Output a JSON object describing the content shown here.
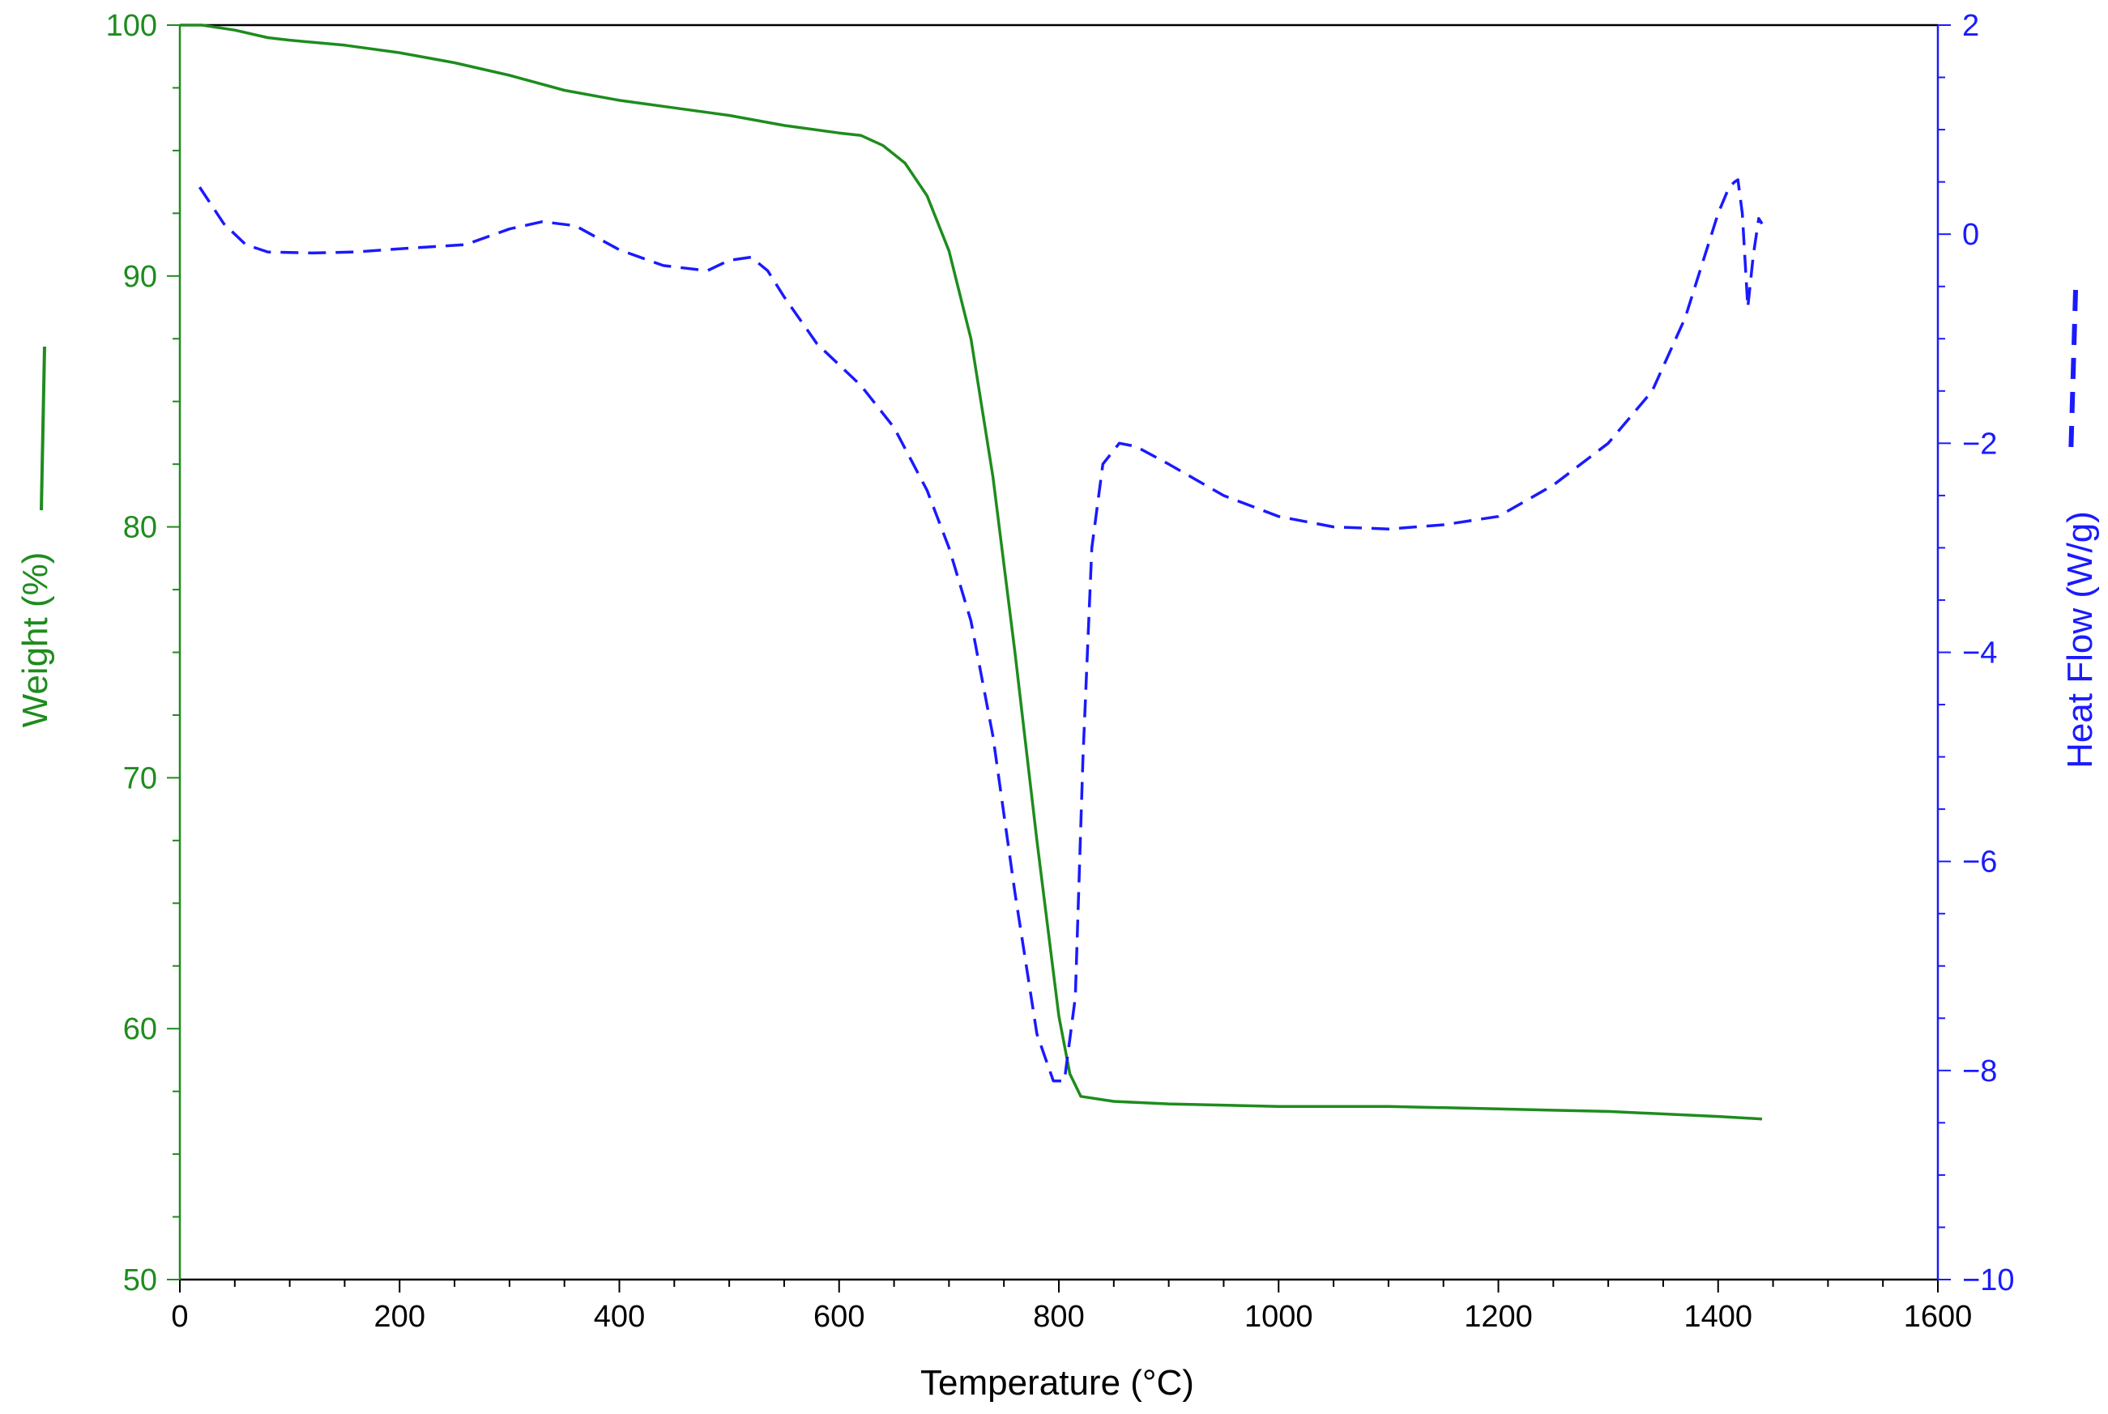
{
  "chart_data": {
    "type": "line",
    "title": "",
    "xlabel": "Temperature (°C)",
    "ylabel": "Weight (%)",
    "y2label": "Heat Flow (W/g)",
    "xlim": [
      0,
      1600
    ],
    "ylim": [
      50,
      100
    ],
    "y2lim": [
      -10,
      2
    ],
    "x_ticks": [
      0,
      200,
      400,
      600,
      800,
      1000,
      1200,
      1400,
      1600
    ],
    "y_ticks": [
      50,
      60,
      70,
      80,
      90,
      100
    ],
    "y2_ticks": [
      -10,
      -8,
      -6,
      -4,
      -2,
      0,
      2
    ],
    "grid": false,
    "legend": "axis-title line swatches",
    "colors": {
      "weight": "#1e8c1e",
      "heat_flow": "#1a1aff",
      "axis": "#000000"
    },
    "series": [
      {
        "key": "weight",
        "axis": "left",
        "style": "solid",
        "x": [
          0,
          20,
          50,
          80,
          100,
          150,
          200,
          250,
          300,
          350,
          400,
          450,
          500,
          550,
          600,
          620,
          640,
          660,
          680,
          700,
          720,
          740,
          760,
          780,
          800,
          810,
          820,
          850,
          900,
          1000,
          1100,
          1200,
          1300,
          1400,
          1440
        ],
        "y": [
          100,
          100,
          99.8,
          99.5,
          99.4,
          99.2,
          98.9,
          98.5,
          98.0,
          97.4,
          97.0,
          96.7,
          96.4,
          96.0,
          95.7,
          95.6,
          95.2,
          94.5,
          93.2,
          91.0,
          87.5,
          82.0,
          75.0,
          67.5,
          60.5,
          58.2,
          57.3,
          57.1,
          57.0,
          56.9,
          56.9,
          56.8,
          56.7,
          56.5,
          56.4
        ]
      },
      {
        "key": "heat_flow",
        "axis": "right",
        "style": "dashed",
        "x": [
          18,
          40,
          60,
          80,
          120,
          160,
          200,
          260,
          300,
          330,
          360,
          400,
          440,
          480,
          500,
          520,
          535,
          550,
          580,
          600,
          620,
          650,
          680,
          700,
          720,
          740,
          760,
          780,
          795,
          805,
          815,
          822,
          830,
          840,
          855,
          870,
          900,
          950,
          1000,
          1050,
          1100,
          1150,
          1200,
          1250,
          1300,
          1340,
          1370,
          1400,
          1410,
          1415,
          1418,
          1422,
          1427,
          1432,
          1437,
          1440
        ],
        "y": [
          0.45,
          0.1,
          -0.1,
          -0.17,
          -0.18,
          -0.17,
          -0.14,
          -0.1,
          0.05,
          0.12,
          0.08,
          -0.15,
          -0.3,
          -0.35,
          -0.25,
          -0.22,
          -0.35,
          -0.6,
          -1.05,
          -1.25,
          -1.45,
          -1.85,
          -2.45,
          -3.0,
          -3.7,
          -4.8,
          -6.3,
          -7.65,
          -8.1,
          -8.1,
          -7.3,
          -5.0,
          -3.0,
          -2.2,
          -2.0,
          -2.03,
          -2.2,
          -2.5,
          -2.7,
          -2.8,
          -2.82,
          -2.78,
          -2.7,
          -2.4,
          -2.0,
          -1.5,
          -0.8,
          0.2,
          0.45,
          0.5,
          0.52,
          0.2,
          -0.7,
          -0.2,
          0.15,
          0.1
        ]
      }
    ]
  }
}
